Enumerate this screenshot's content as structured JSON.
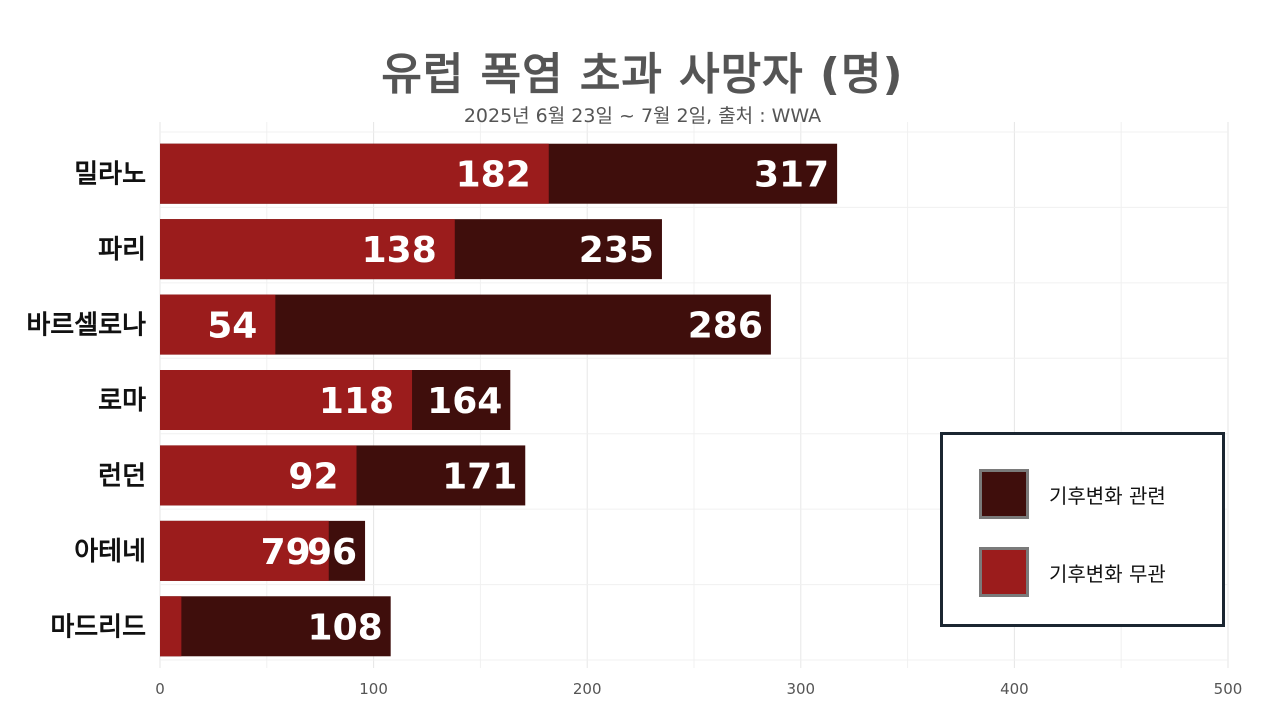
{
  "chart_data": {
    "type": "bar",
    "orientation": "horizontal",
    "stacked": false,
    "title": "유럽 폭염 초과 사망자 (명)",
    "subtitle": "2025년 6월 23일 ~ 7월 2일, 출처 : WWA",
    "categories": [
      "밀라노",
      "파리",
      "바르셀로나",
      "로마",
      "런던",
      "아테네",
      "마드리드"
    ],
    "series": [
      {
        "name": "기후변화 관련",
        "values": [
          317,
          235,
          286,
          164,
          171,
          96,
          108
        ],
        "color": "#3f0e0c"
      },
      {
        "name": "기후변화 무관",
        "values": [
          182,
          138,
          54,
          118,
          92,
          79,
          10
        ],
        "color": "#9b1c1c"
      }
    ],
    "x_ticks": [
      "0",
      "100",
      "200",
      "300",
      "400",
      "500"
    ],
    "xlim": [
      0,
      500
    ],
    "grid": true,
    "legend_position": "bottom-right"
  }
}
